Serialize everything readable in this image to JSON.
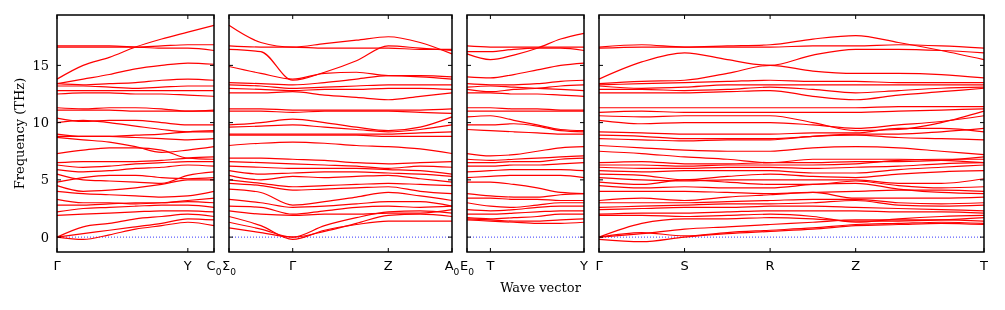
{
  "chart_data": [
    {
      "type": "line",
      "ylabel": "Frequency (THz)",
      "categories": [
        "Γ",
        null,
        null,
        null,
        null,
        "Y",
        "C$_{0}$"
      ],
      "ylim": [
        -1.3,
        19.4
      ],
      "yticks": [
        0,
        5,
        10,
        15
      ],
      "ref_lines": [
        {
          "axis": "y",
          "value": 0,
          "color": "#0000ff",
          "line_style": "dotted"
        }
      ],
      "series": [
        {
          "color": "#ff0000",
          "values": [
            0,
            -0.2,
            0.2,
            0.7,
            1.0,
            1.3,
            1.0
          ]
        },
        {
          "color": "#ff0000",
          "values": [
            0,
            0.3,
            0.6,
            0.9,
            1.2,
            1.6,
            1.5
          ]
        },
        {
          "color": "#ff0000",
          "values": [
            0,
            0.9,
            1.2,
            1.6,
            1.8,
            2.0,
            1.8
          ]
        },
        {
          "color": "#ff0000",
          "values": [
            1.9,
            2.0,
            2.1,
            2.2,
            2.3,
            2.3,
            2.2
          ]
        },
        {
          "color": "#ff0000",
          "values": [
            2.2,
            2.5,
            2.6,
            2.7,
            2.8,
            2.8,
            2.6
          ]
        },
        {
          "color": "#ff0000",
          "values": [
            2.8,
            2.8,
            2.9,
            3.0,
            3.0,
            3.1,
            3.0
          ]
        },
        {
          "color": "#ff0000",
          "values": [
            3.3,
            3.0,
            3.0,
            2.9,
            3.0,
            3.2,
            3.4
          ]
        },
        {
          "color": "#ff0000",
          "values": [
            4.0,
            3.8,
            3.7,
            3.6,
            3.5,
            3.6,
            4.0
          ]
        },
        {
          "color": "#ff0000",
          "values": [
            4.5,
            4.0,
            4.1,
            4.3,
            4.6,
            5.0,
            5.0
          ]
        },
        {
          "color": "#ff0000",
          "values": [
            4.8,
            5.2,
            5.4,
            5.4,
            5.2,
            5.1,
            5.2
          ]
        },
        {
          "color": "#ff0000",
          "values": [
            5.5,
            5.0,
            4.9,
            4.8,
            4.7,
            5.4,
            5.7
          ]
        },
        {
          "color": "#ff0000",
          "values": [
            5.9,
            5.7,
            5.8,
            6.0,
            6.1,
            6.3,
            6.2
          ]
        },
        {
          "color": "#ff0000",
          "values": [
            6.3,
            6.1,
            6.2,
            6.4,
            6.5,
            6.6,
            6.6
          ]
        },
        {
          "color": "#ff0000",
          "values": [
            6.5,
            6.6,
            6.6,
            6.6,
            6.7,
            6.9,
            7.0
          ]
        },
        {
          "color": "#ff0000",
          "values": [
            7.3,
            7.6,
            7.8,
            7.8,
            7.6,
            6.9,
            6.8
          ]
        },
        {
          "color": "#ff0000",
          "values": [
            8.7,
            8.5,
            8.3,
            7.9,
            7.4,
            7.6,
            7.9
          ]
        },
        {
          "color": "#ff0000",
          "values": [
            8.8,
            8.8,
            8.8,
            8.7,
            8.6,
            8.5,
            8.6
          ]
        },
        {
          "color": "#ff0000",
          "values": [
            9.0,
            8.8,
            8.8,
            8.9,
            9.0,
            9.2,
            9.3
          ]
        },
        {
          "color": "#ff0000",
          "values": [
            10.0,
            10.2,
            10.0,
            9.7,
            9.4,
            9.2,
            9.2
          ]
        },
        {
          "color": "#ff0000",
          "values": [
            10.4,
            10.1,
            10.2,
            10.2,
            10.0,
            9.8,
            9.8
          ]
        },
        {
          "color": "#ff0000",
          "values": [
            11.1,
            11.1,
            11.1,
            11.0,
            11.0,
            11.0,
            11.1
          ]
        },
        {
          "color": "#ff0000",
          "values": [
            11.3,
            11.2,
            11.3,
            11.3,
            11.2,
            11.0,
            11.0
          ]
        },
        {
          "color": "#ff0000",
          "values": [
            12.5,
            12.6,
            12.6,
            12.5,
            12.5,
            12.4,
            12.3
          ]
        },
        {
          "color": "#ff0000",
          "values": [
            12.8,
            12.8,
            12.8,
            12.8,
            12.8,
            12.8,
            12.8
          ]
        },
        {
          "color": "#ff0000",
          "values": [
            13.2,
            13.2,
            13.1,
            13.0,
            13.1,
            13.2,
            13.2
          ]
        },
        {
          "color": "#ff0000",
          "values": [
            13.4,
            13.3,
            13.4,
            13.5,
            13.7,
            13.8,
            13.7
          ]
        },
        {
          "color": "#ff0000",
          "values": [
            13.4,
            13.8,
            14.2,
            14.7,
            15.0,
            15.2,
            15.1
          ]
        },
        {
          "color": "#ff0000",
          "values": [
            13.8,
            15.0,
            15.7,
            16.6,
            17.3,
            17.9,
            18.5
          ]
        },
        {
          "color": "#ff0000",
          "values": [
            16.6,
            16.6,
            16.6,
            16.6,
            16.7,
            16.8,
            16.8
          ]
        },
        {
          "color": "#ff0000",
          "values": [
            16.7,
            16.7,
            16.7,
            16.6,
            16.5,
            16.5,
            16.3
          ]
        }
      ]
    },
    {
      "type": "line",
      "categories": [
        "Σ$_{0}$",
        null,
        "Γ",
        null,
        null,
        "Z",
        null,
        "A$_{0}$"
      ],
      "ylim": [
        -1.3,
        19.4
      ],
      "yticks": [
        0,
        5,
        10,
        15
      ],
      "tick_labels": "x",
      "ref_lines": [
        {
          "axis": "y",
          "value": 0,
          "color": "#0000ff",
          "line_style": "dotted"
        }
      ],
      "series": [
        {
          "color": "#ff0000",
          "values": [
            18.5,
            17.0,
            16.6,
            16.9,
            17.2,
            17.5,
            17.0,
            16.0
          ]
        },
        {
          "color": "#ff0000",
          "values": [
            16.7,
            16.6,
            16.6,
            16.5,
            16.5,
            16.5,
            16.4,
            16.4
          ]
        },
        {
          "color": "#ff0000",
          "values": [
            16.4,
            16.2,
            13.7,
            14.4,
            15.4,
            16.7,
            16.5,
            16.3
          ]
        },
        {
          "color": "#ff0000",
          "values": [
            14.9,
            14.3,
            13.8,
            14.3,
            14.4,
            14.1,
            14.1,
            14.0
          ]
        },
        {
          "color": "#ff0000",
          "values": [
            13.5,
            13.4,
            13.3,
            13.5,
            13.8,
            14.1,
            14.0,
            13.8
          ]
        },
        {
          "color": "#ff0000",
          "values": [
            13.3,
            13.2,
            13.0,
            13.1,
            13.2,
            13.3,
            13.3,
            13.3
          ]
        },
        {
          "color": "#ff0000",
          "values": [
            13.0,
            12.9,
            12.8,
            12.9,
            12.9,
            13.0,
            13.0,
            12.9
          ]
        },
        {
          "color": "#ff0000",
          "values": [
            12.6,
            12.6,
            12.7,
            12.4,
            12.2,
            12.0,
            12.3,
            12.6
          ]
        },
        {
          "color": "#ff0000",
          "values": [
            11.2,
            11.2,
            11.1,
            11.1,
            11.1,
            11.1,
            11.1,
            11.2
          ]
        },
        {
          "color": "#ff0000",
          "values": [
            11.0,
            11.0,
            10.9,
            11.0,
            11.0,
            11.0,
            10.9,
            10.8
          ]
        },
        {
          "color": "#ff0000",
          "values": [
            9.8,
            10.0,
            10.3,
            10.0,
            9.6,
            9.3,
            9.6,
            10.5
          ]
        },
        {
          "color": "#ff0000",
          "values": [
            9.6,
            9.7,
            9.8,
            9.6,
            9.4,
            9.2,
            9.4,
            9.8
          ]
        },
        {
          "color": "#ff0000",
          "values": [
            9.0,
            9.0,
            9.0,
            9.0,
            9.0,
            9.0,
            9.1,
            9.2
          ]
        },
        {
          "color": "#ff0000",
          "values": [
            8.9,
            8.9,
            8.9,
            8.9,
            8.9,
            8.8,
            8.8,
            8.8
          ]
        },
        {
          "color": "#ff0000",
          "values": [
            8.0,
            8.2,
            8.3,
            8.2,
            8.0,
            7.9,
            7.7,
            7.3
          ]
        },
        {
          "color": "#ff0000",
          "values": [
            6.9,
            6.9,
            6.8,
            6.7,
            6.5,
            6.4,
            6.5,
            6.6
          ]
        },
        {
          "color": "#ff0000",
          "values": [
            6.6,
            6.5,
            6.4,
            6.3,
            6.2,
            6.0,
            6.2,
            6.1
          ]
        },
        {
          "color": "#ff0000",
          "values": [
            6.2,
            6.1,
            6.0,
            6.0,
            6.0,
            5.9,
            5.8,
            5.5
          ]
        },
        {
          "color": "#ff0000",
          "values": [
            5.8,
            5.5,
            5.6,
            5.7,
            5.7,
            5.6,
            5.5,
            5.3
          ]
        },
        {
          "color": "#ff0000",
          "values": [
            5.4,
            5.0,
            5.3,
            5.2,
            5.3,
            5.4,
            5.1,
            4.8
          ]
        },
        {
          "color": "#ff0000",
          "values": [
            5.0,
            4.7,
            4.4,
            4.5,
            4.6,
            4.7,
            4.6,
            4.5
          ]
        },
        {
          "color": "#ff0000",
          "values": [
            4.7,
            4.5,
            4.1,
            4.2,
            4.3,
            4.4,
            4.0,
            3.8
          ]
        },
        {
          "color": "#ff0000",
          "values": [
            4.2,
            3.9,
            2.8,
            3.1,
            3.5,
            3.9,
            3.6,
            3.2
          ]
        },
        {
          "color": "#ff0000",
          "values": [
            3.3,
            3.0,
            2.6,
            2.7,
            2.9,
            3.1,
            3.1,
            2.7
          ]
        },
        {
          "color": "#ff0000",
          "values": [
            2.7,
            2.6,
            2.0,
            2.3,
            2.6,
            2.7,
            2.6,
            2.7
          ]
        },
        {
          "color": "#ff0000",
          "values": [
            2.3,
            2.0,
            1.9,
            2.0,
            2.0,
            2.1,
            2.1,
            2.4
          ]
        },
        {
          "color": "#ff0000",
          "values": [
            1.8,
            1.0,
            -0.2,
            0.6,
            1.1,
            1.4,
            1.4,
            1.4
          ]
        },
        {
          "color": "#ff0000",
          "values": [
            1.3,
            0.7,
            0,
            1.0,
            1.7,
            2.2,
            2.3,
            2.1
          ]
        },
        {
          "color": "#ff0000",
          "values": [
            0.8,
            0.4,
            0,
            0.5,
            1.2,
            1.9,
            2.0,
            1.8
          ]
        }
      ]
    },
    {
      "type": "line",
      "xlabel": "Wave vector",
      "categories": [
        "E$_{0}$",
        "T",
        null,
        null,
        null,
        "Y"
      ],
      "ylim": [
        -1.3,
        19.4
      ],
      "yticks": [
        0,
        5,
        10,
        15
      ],
      "tick_labels": "x",
      "ref_lines": [
        {
          "axis": "y",
          "value": 0,
          "color": "#0000ff",
          "line_style": "dotted"
        }
      ],
      "series": [
        {
          "color": "#ff0000",
          "values": [
            16.7,
            16.6,
            16.6,
            16.6,
            16.6,
            16.6
          ]
        },
        {
          "color": "#ff0000",
          "values": [
            16.2,
            16.2,
            16.4,
            16.5,
            16.5,
            16.3
          ]
        },
        {
          "color": "#ff0000",
          "values": [
            16.0,
            15.5,
            15.9,
            16.5,
            17.3,
            17.8
          ]
        },
        {
          "color": "#ff0000",
          "values": [
            14.0,
            13.9,
            14.2,
            14.6,
            15.0,
            15.2
          ]
        },
        {
          "color": "#ff0000",
          "values": [
            13.4,
            13.3,
            13.3,
            13.4,
            13.6,
            13.7
          ]
        },
        {
          "color": "#ff0000",
          "values": [
            13.1,
            13.2,
            13.1,
            13.0,
            12.9,
            12.8
          ]
        },
        {
          "color": "#ff0000",
          "values": [
            12.9,
            12.7,
            12.9,
            13.0,
            13.2,
            13.3
          ]
        },
        {
          "color": "#ff0000",
          "values": [
            12.6,
            12.6,
            12.5,
            12.5,
            12.4,
            12.3
          ]
        },
        {
          "color": "#ff0000",
          "values": [
            11.3,
            11.3,
            11.2,
            11.2,
            11.1,
            11.1
          ]
        },
        {
          "color": "#ff0000",
          "values": [
            11.0,
            11.0,
            11.0,
            11.0,
            11.0,
            11.0
          ]
        },
        {
          "color": "#ff0000",
          "values": [
            10.5,
            10.6,
            10.2,
            9.8,
            9.4,
            9.3
          ]
        },
        {
          "color": "#ff0000",
          "values": [
            9.8,
            9.8,
            9.9,
            9.7,
            9.3,
            9.2
          ]
        },
        {
          "color": "#ff0000",
          "values": [
            9.4,
            9.3,
            9.2,
            9.1,
            9.0,
            9.0
          ]
        },
        {
          "color": "#ff0000",
          "values": [
            7.3,
            7.1,
            7.2,
            7.5,
            7.8,
            7.9
          ]
        },
        {
          "color": "#ff0000",
          "values": [
            6.8,
            6.7,
            6.8,
            6.9,
            7.0,
            7.1
          ]
        },
        {
          "color": "#ff0000",
          "values": [
            6.5,
            6.5,
            6.6,
            6.6,
            6.8,
            6.9
          ]
        },
        {
          "color": "#ff0000",
          "values": [
            6.2,
            6.2,
            6.3,
            6.3,
            6.4,
            6.5
          ]
        },
        {
          "color": "#ff0000",
          "values": [
            5.7,
            5.8,
            5.9,
            5.9,
            5.9,
            5.8
          ]
        },
        {
          "color": "#ff0000",
          "values": [
            5.2,
            5.3,
            5.4,
            5.4,
            5.4,
            5.2
          ]
        },
        {
          "color": "#ff0000",
          "values": [
            4.8,
            4.8,
            4.6,
            4.3,
            3.9,
            3.8
          ]
        },
        {
          "color": "#ff0000",
          "values": [
            3.8,
            3.6,
            3.5,
            3.5,
            3.7,
            3.8
          ]
        },
        {
          "color": "#ff0000",
          "values": [
            3.4,
            3.4,
            3.3,
            3.3,
            3.2,
            3.2
          ]
        },
        {
          "color": "#ff0000",
          "values": [
            3.0,
            2.7,
            2.6,
            2.8,
            3.0,
            3.0
          ]
        },
        {
          "color": "#ff0000",
          "values": [
            2.4,
            2.3,
            2.4,
            2.6,
            2.7,
            2.7
          ]
        },
        {
          "color": "#ff0000",
          "values": [
            2.0,
            2.0,
            2.1,
            2.2,
            2.3,
            2.3
          ]
        },
        {
          "color": "#ff0000",
          "values": [
            1.7,
            1.6,
            1.7,
            1.8,
            2.0,
            2.0
          ]
        },
        {
          "color": "#ff0000",
          "values": [
            1.6,
            1.5,
            1.4,
            1.4,
            1.5,
            1.6
          ]
        },
        {
          "color": "#ff0000",
          "values": [
            1.5,
            1.4,
            1.3,
            1.2,
            1.2,
            1.3
          ]
        }
      ]
    },
    {
      "type": "line",
      "categories": [
        "Γ",
        null,
        "S",
        null,
        "R",
        null,
        "Z",
        null,
        null,
        "T"
      ],
      "ylim": [
        -1.3,
        19.4
      ],
      "yticks": [
        0,
        5,
        10,
        15
      ],
      "tick_labels": "x",
      "ref_lines": [
        {
          "axis": "y",
          "value": 0,
          "color": "#0000ff",
          "line_style": "dotted"
        }
      ],
      "series": [
        {
          "color": "#ff0000",
          "values": [
            16.6,
            16.8,
            16.6,
            16.7,
            16.8,
            17.3,
            17.6,
            17.0,
            16.3,
            15.5
          ]
        },
        {
          "color": "#ff0000",
          "values": [
            16.5,
            16.6,
            16.6,
            16.6,
            16.6,
            16.7,
            16.7,
            16.8,
            16.7,
            16.5
          ]
        },
        {
          "color": "#ff0000",
          "values": [
            13.8,
            15.3,
            16.1,
            15.5,
            15.0,
            15.9,
            16.4,
            16.4,
            16.3,
            16.1
          ]
        },
        {
          "color": "#ff0000",
          "values": [
            13.4,
            13.6,
            13.7,
            14.3,
            15.0,
            14.5,
            14.3,
            14.3,
            14.2,
            13.9
          ]
        },
        {
          "color": "#ff0000",
          "values": [
            13.3,
            13.4,
            13.5,
            13.6,
            13.7,
            13.6,
            13.6,
            13.5,
            13.5,
            13.5
          ]
        },
        {
          "color": "#ff0000",
          "values": [
            13.2,
            13.0,
            13.1,
            13.3,
            13.3,
            13.3,
            13.3,
            13.3,
            13.3,
            13.3
          ]
        },
        {
          "color": "#ff0000",
          "values": [
            12.9,
            12.9,
            12.8,
            12.9,
            13.1,
            12.9,
            12.6,
            12.8,
            13.0,
            13.1
          ]
        },
        {
          "color": "#ff0000",
          "values": [
            12.6,
            12.6,
            12.6,
            12.7,
            12.8,
            12.3,
            12.0,
            12.4,
            12.7,
            13.0
          ]
        },
        {
          "color": "#ff0000",
          "values": [
            11.3,
            11.3,
            11.3,
            11.3,
            11.3,
            11.3,
            11.3,
            11.4,
            11.4,
            11.4
          ]
        },
        {
          "color": "#ff0000",
          "values": [
            10.9,
            11.0,
            10.9,
            10.9,
            10.9,
            10.9,
            10.9,
            11.0,
            11.1,
            11.2
          ]
        },
        {
          "color": "#ff0000",
          "values": [
            10.6,
            10.5,
            10.6,
            10.6,
            10.6,
            10.0,
            9.3,
            9.4,
            10.0,
            11.0
          ]
        },
        {
          "color": "#ff0000",
          "values": [
            10.2,
            9.9,
            10.0,
            10.0,
            10.0,
            9.8,
            9.5,
            9.8,
            10.1,
            10.6
          ]
        },
        {
          "color": "#ff0000",
          "values": [
            9.2,
            9.1,
            9.0,
            9.0,
            9.0,
            9.1,
            9.1,
            9.5,
            9.5,
            9.2
          ]
        },
        {
          "color": "#ff0000",
          "values": [
            8.9,
            8.8,
            8.6,
            8.6,
            8.6,
            8.8,
            9.0,
            9.0,
            9.2,
            9.5
          ]
        },
        {
          "color": "#ff0000",
          "values": [
            8.6,
            8.5,
            8.4,
            8.5,
            8.5,
            8.8,
            8.9,
            8.7,
            8.6,
            8.5
          ]
        },
        {
          "color": "#ff0000",
          "values": [
            8.0,
            7.8,
            7.6,
            7.5,
            7.5,
            7.8,
            7.9,
            7.8,
            7.5,
            7.2
          ]
        },
        {
          "color": "#ff0000",
          "values": [
            7.5,
            7.3,
            7.0,
            6.8,
            6.5,
            6.8,
            6.8,
            6.8,
            6.7,
            6.5
          ]
        },
        {
          "color": "#ff0000",
          "values": [
            6.5,
            6.6,
            6.4,
            6.4,
            6.5,
            6.5,
            6.6,
            6.6,
            6.7,
            7.0
          ]
        },
        {
          "color": "#ff0000",
          "values": [
            6.3,
            6.3,
            6.2,
            6.3,
            6.3,
            6.3,
            6.4,
            6.7,
            6.8,
            6.8
          ]
        },
        {
          "color": "#ff0000",
          "values": [
            6.1,
            6.0,
            6.0,
            6.1,
            6.1,
            6.0,
            6.1,
            6.2,
            6.4,
            6.5
          ]
        },
        {
          "color": "#ff0000",
          "values": [
            5.8,
            5.7,
            5.8,
            5.8,
            5.8,
            5.6,
            5.6,
            5.9,
            6.1,
            6.3
          ]
        },
        {
          "color": "#ff0000",
          "values": [
            5.5,
            5.4,
            5.0,
            5.3,
            5.5,
            5.3,
            5.2,
            5.5,
            5.7,
            5.8
          ]
        },
        {
          "color": "#ff0000",
          "values": [
            5.2,
            5.0,
            4.9,
            5.0,
            5.0,
            5.0,
            5.0,
            4.7,
            4.7,
            5.1
          ]
        },
        {
          "color": "#ff0000",
          "values": [
            4.8,
            4.6,
            5.0,
            4.8,
            4.6,
            4.6,
            4.9,
            4.5,
            4.3,
            4.4
          ]
        },
        {
          "color": "#ff0000",
          "values": [
            4.5,
            4.3,
            4.4,
            4.3,
            4.3,
            4.6,
            4.7,
            4.2,
            3.9,
            3.8
          ]
        },
        {
          "color": "#ff0000",
          "values": [
            4.0,
            4.0,
            4.0,
            3.9,
            3.8,
            3.9,
            4.0,
            4.1,
            4.1,
            4.0
          ]
        },
        {
          "color": "#ff0000",
          "values": [
            3.2,
            3.4,
            3.2,
            3.5,
            3.7,
            3.9,
            3.4,
            3.4,
            3.4,
            3.5
          ]
        },
        {
          "color": "#ff0000",
          "values": [
            3.0,
            3.0,
            3.0,
            3.1,
            3.2,
            3.3,
            3.3,
            3.0,
            2.9,
            3.0
          ]
        },
        {
          "color": "#ff0000",
          "values": [
            2.6,
            2.7,
            2.8,
            2.9,
            2.9,
            3.0,
            3.2,
            2.8,
            2.7,
            2.8
          ]
        },
        {
          "color": "#ff0000",
          "values": [
            2.4,
            2.5,
            2.6,
            2.6,
            2.7,
            2.7,
            2.6,
            2.5,
            2.4,
            2.3
          ]
        },
        {
          "color": "#ff0000",
          "values": [
            2.0,
            2.1,
            2.1,
            2.2,
            2.3,
            2.3,
            2.3,
            2.2,
            2.2,
            2.1
          ]
        },
        {
          "color": "#ff0000",
          "values": [
            1.9,
            1.9,
            1.8,
            1.9,
            2.0,
            1.8,
            1.3,
            1.6,
            1.8,
            1.9
          ]
        },
        {
          "color": "#ff0000",
          "values": [
            0,
            1.2,
            1.6,
            1.6,
            1.7,
            1.6,
            1.4,
            1.4,
            1.5,
            1.7
          ]
        },
        {
          "color": "#ff0000",
          "values": [
            0,
            0.3,
            0.7,
            0.9,
            1.1,
            1.3,
            1.5,
            1.5,
            1.5,
            1.4
          ]
        },
        {
          "color": "#ff0000",
          "values": [
            0,
            0.4,
            0.1,
            0.4,
            0.6,
            0.8,
            1.1,
            1.2,
            1.3,
            1.2
          ]
        },
        {
          "color": "#ff0000",
          "values": [
            -0.2,
            -0.4,
            0,
            0.3,
            0.5,
            0.7,
            1.0,
            1.1,
            1.2,
            1.1
          ]
        }
      ]
    }
  ]
}
